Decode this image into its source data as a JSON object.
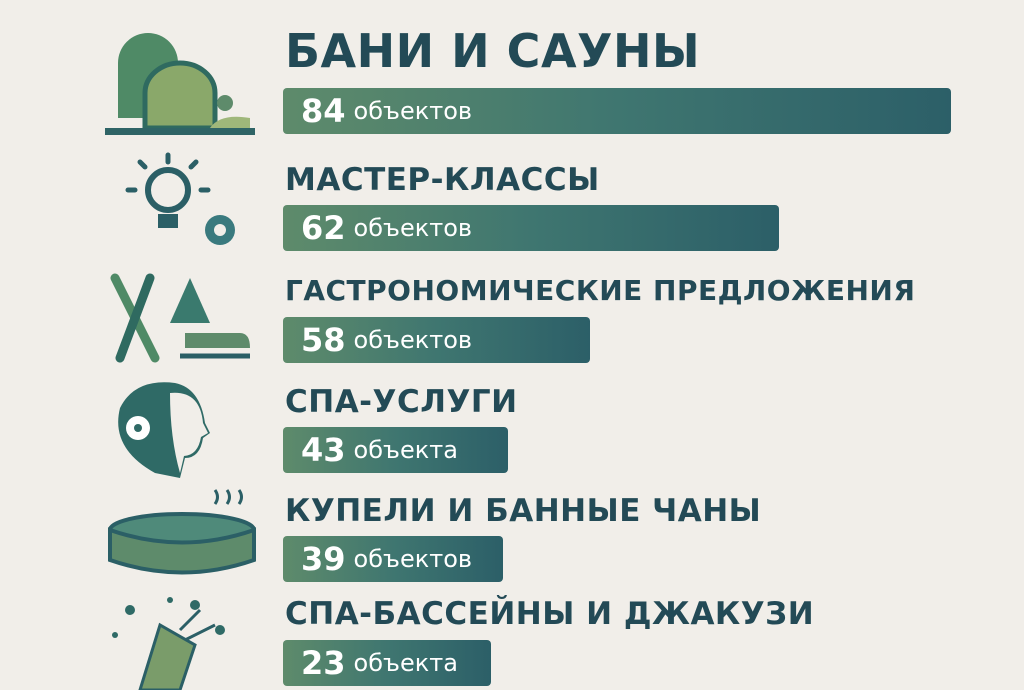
{
  "chart_data": {
    "type": "bar",
    "orientation": "horizontal",
    "categories": [
      "БАНИ И САУНЫ",
      "МАСТЕР-КЛАССЫ",
      "ГАСТРОНОМИЧЕСКИЕ ПРЕДЛОЖЕНИЯ",
      "СПА-УСЛУГИ",
      "КУПЕЛИ И БАННЫЕ ЧАНЫ",
      "СПА-БАССЕЙНЫ И ДЖАКУЗИ"
    ],
    "values": [
      84,
      62,
      58,
      43,
      39,
      23
    ],
    "value_labels": [
      "объектов",
      "объектов",
      "объектов",
      "объекта",
      "объектов",
      "объекта"
    ],
    "icons": [
      "sauna-icon",
      "lightbulb-gear-icon",
      "skis-sled-icon",
      "woman-flower-icon",
      "hot-tub-icon",
      "party-popper-icon"
    ],
    "colors": {
      "bar_start": "#5e8b6b",
      "bar_end": "#2c5f68",
      "title": "#234a56",
      "background": "#f1eee9"
    }
  }
}
